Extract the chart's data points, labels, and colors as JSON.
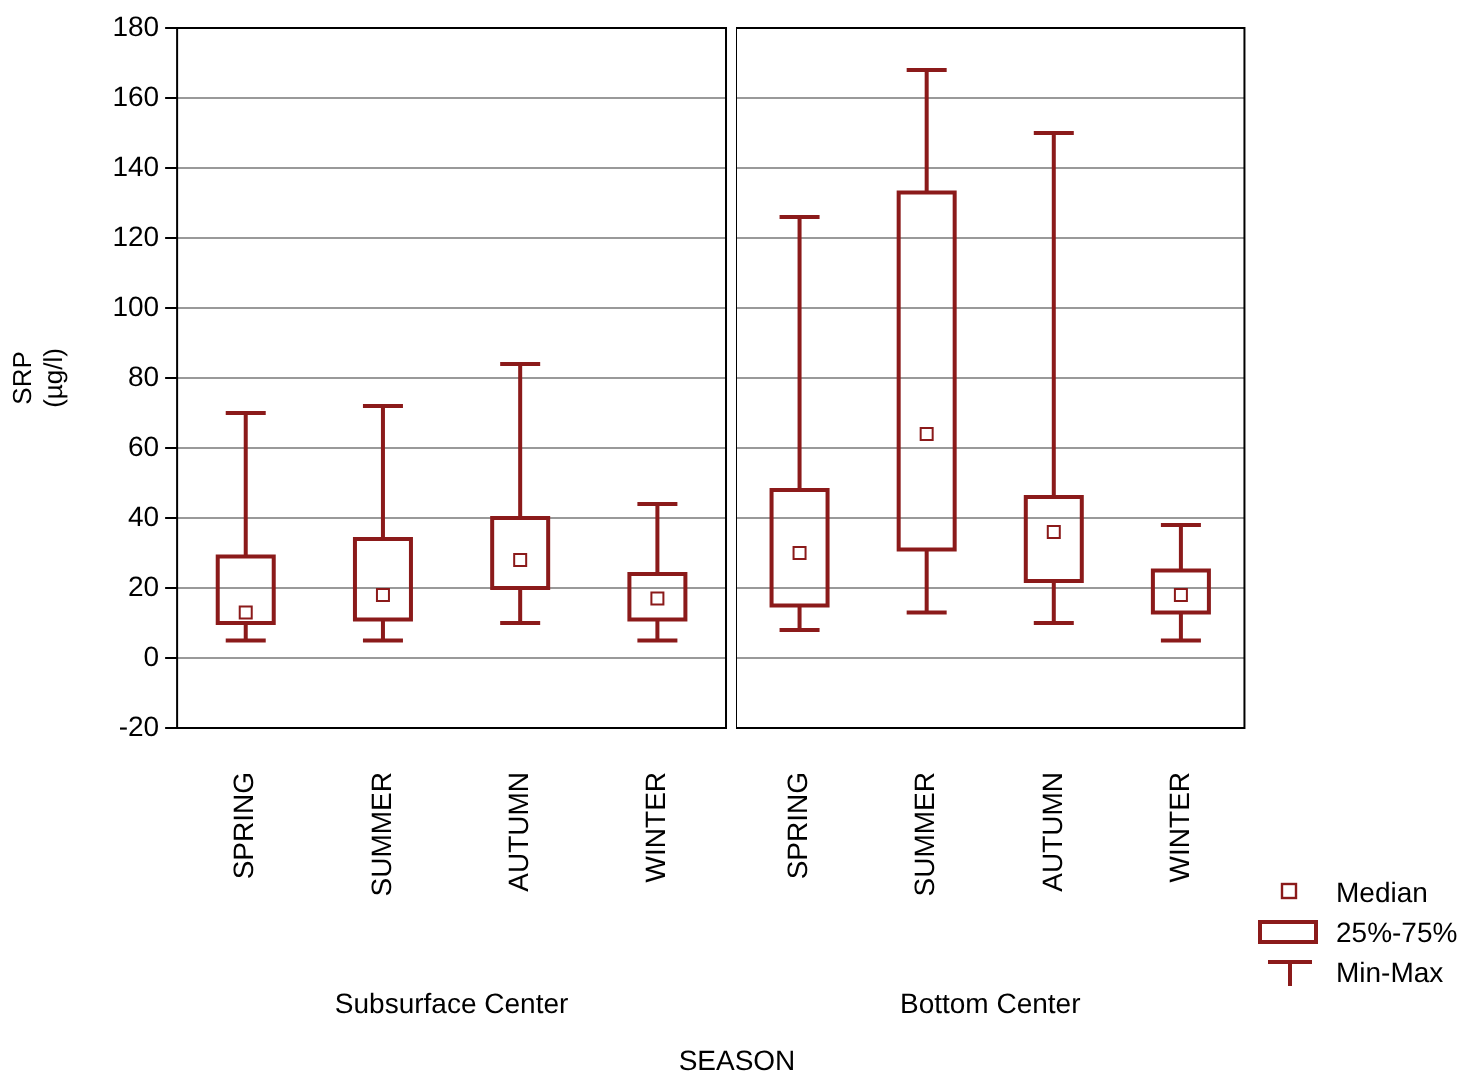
{
  "chart_data": [
    {
      "type": "box",
      "ylabel": "SRP\n(µg/l)",
      "xlabel": "Subsurface Center",
      "categories": [
        "SPRING",
        "SUMMER",
        "AUTUMN",
        "WINTER"
      ],
      "color": "#8b1a1a",
      "boxes": [
        {
          "low": 5,
          "q1": 10,
          "median": 13,
          "q3": 29,
          "high": 70
        },
        {
          "low": 5,
          "q1": 11,
          "median": 18,
          "q3": 34,
          "high": 72
        },
        {
          "low": 10,
          "q1": 20,
          "median": 28,
          "q3": 40,
          "high": 84
        },
        {
          "low": 5,
          "q1": 11,
          "median": 17,
          "q3": 24,
          "high": 44
        }
      ],
      "ylim": [
        -20,
        180
      ],
      "yticks": [
        -20,
        0,
        20,
        40,
        60,
        80,
        100,
        120,
        140,
        160,
        180
      ],
      "grid": "y",
      "annotations": [
        "SEASON"
      ]
    },
    {
      "type": "box",
      "xlabel": "Bottom Center",
      "categories": [
        "SPRING",
        "SUMMER",
        "AUTUMN",
        "WINTER"
      ],
      "color": "#8b1a1a",
      "boxes": [
        {
          "low": 8,
          "q1": 15,
          "median": 30,
          "q3": 48,
          "high": 126
        },
        {
          "low": 13,
          "q1": 31,
          "median": 64,
          "q3": 133,
          "high": 168
        },
        {
          "low": 10,
          "q1": 22,
          "median": 36,
          "q3": 46,
          "high": 150
        },
        {
          "low": 5,
          "q1": 13,
          "median": 18,
          "q3": 25,
          "high": 38
        }
      ],
      "ylim": [
        -20,
        180
      ],
      "yticks": [
        -20,
        0,
        20,
        40,
        60,
        80,
        100,
        120,
        140,
        160,
        180
      ],
      "grid": "y",
      "tick_labels": "x",
      "annotations": [
        "Median",
        "25%-75%",
        "Min-Max"
      ]
    }
  ]
}
